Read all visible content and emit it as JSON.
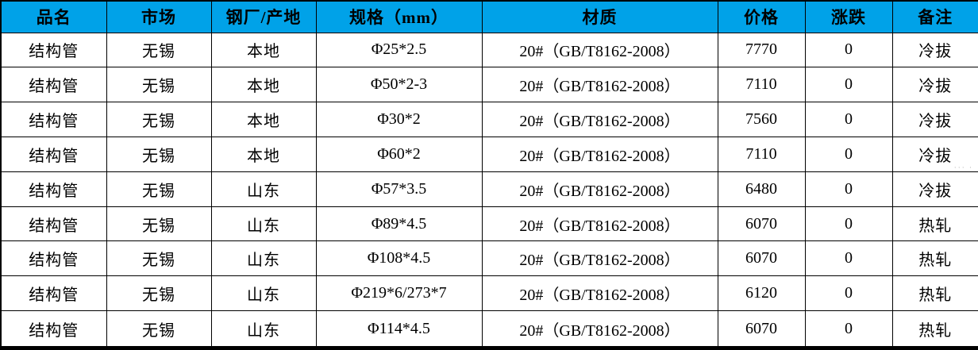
{
  "colors": {
    "header_background": "#00a2e8",
    "header_text": "#000000",
    "cell_text": "#000000",
    "border": "#000000",
    "row_background": "#ffffff"
  },
  "table": {
    "columns": [
      {
        "label": "品名"
      },
      {
        "label": "市场"
      },
      {
        "label": "钢厂/产地"
      },
      {
        "label": "规格（mm）"
      },
      {
        "label": "材质"
      },
      {
        "label": "价格"
      },
      {
        "label": "涨跌"
      },
      {
        "label": "备注"
      }
    ],
    "rows": [
      [
        "结构管",
        "无锡",
        "本地",
        "Φ25*2.5",
        "20#（GB/T8162-2008）",
        "7770",
        "0",
        "冷拔"
      ],
      [
        "结构管",
        "无锡",
        "本地",
        "Φ50*2-3",
        "20#（GB/T8162-2008）",
        "7110",
        "0",
        "冷拔"
      ],
      [
        "结构管",
        "无锡",
        "本地",
        "Φ30*2",
        "20#（GB/T8162-2008）",
        "7560",
        "0",
        "冷拔"
      ],
      [
        "结构管",
        "无锡",
        "本地",
        "Φ60*2",
        "20#（GB/T8162-2008）",
        "7110",
        "0",
        "冷拔"
      ],
      [
        "结构管",
        "无锡",
        "山东",
        "Φ57*3.5",
        "20#（GB/T8162-2008）",
        "6480",
        "0",
        "冷拔"
      ],
      [
        "结构管",
        "无锡",
        "山东",
        "Φ89*4.5",
        "20#（GB/T8162-2008）",
        "6070",
        "0",
        "热轧"
      ],
      [
        "结构管",
        "无锡",
        "山东",
        "Φ108*4.5",
        "20#（GB/T8162-2008）",
        "6070",
        "0",
        "热轧"
      ],
      [
        "结构管",
        "无锡",
        "山东",
        "Φ219*6/273*7",
        "20#（GB/T8162-2008）",
        "6120",
        "0",
        "热轧"
      ],
      [
        "结构管",
        "无锡",
        "山东",
        "Φ114*4.5",
        "20#（GB/T8162-2008）",
        "6070",
        "0",
        "热轧"
      ]
    ],
    "watermark_artifact": "··· ·"
  }
}
